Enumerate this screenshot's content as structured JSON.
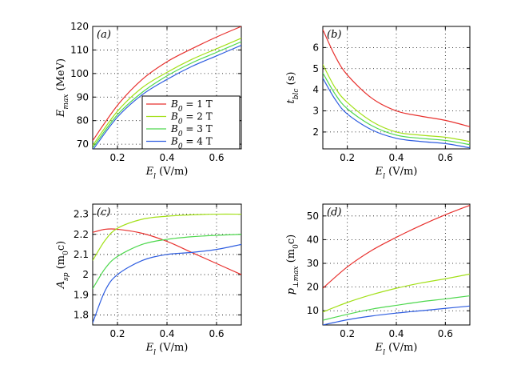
{
  "chart_data": [
    {
      "type": "line",
      "panel_label": "(a)",
      "x": [
        0.1,
        0.2,
        0.3,
        0.4,
        0.5,
        0.6,
        0.7
      ],
      "xlim": [
        0.1,
        0.7
      ],
      "ylim": [
        68,
        120
      ],
      "xticks": [
        0.2,
        0.4,
        0.6
      ],
      "yticks": [
        70,
        80,
        90,
        100,
        110,
        120
      ],
      "xticklabels": [
        "0.2",
        "0.4",
        "0.6"
      ],
      "yticklabels": [
        "70",
        "80",
        "90",
        "100",
        "110",
        "120"
      ],
      "xlabel": {
        "main": "E",
        "sub": "l",
        "units": " (V/m)"
      },
      "ylabel": {
        "main": "E",
        "sub": "max",
        "units": " (MeV)"
      },
      "grid": true,
      "legend": {
        "placement": "lower-right",
        "entries": [
          {
            "main": "B",
            "sub": "0",
            "rest": " = 1 T"
          },
          {
            "main": "B",
            "sub": "0",
            "rest": " = 2 T"
          },
          {
            "main": "B",
            "sub": "0",
            "rest": " = 3 T"
          },
          {
            "main": "B",
            "sub": "0",
            "rest": " = 4 T"
          }
        ]
      },
      "series": [
        {
          "color": "#e8312e",
          "values": [
            71.5,
            86.5,
            97.5,
            105.0,
            110.5,
            115.5,
            120.0
          ]
        },
        {
          "color": "#a3e019",
          "values": [
            69.5,
            84.0,
            94.0,
            100.5,
            106.0,
            110.5,
            115.0
          ]
        },
        {
          "color": "#4fd84f",
          "values": [
            68.5,
            82.5,
            92.0,
            99.0,
            104.5,
            109.0,
            113.5
          ]
        },
        {
          "color": "#2e5de0",
          "values": [
            67.5,
            81.5,
            91.0,
            97.5,
            103.0,
            107.5,
            112.0
          ]
        }
      ]
    },
    {
      "type": "line",
      "panel_label": "(b)",
      "x": [
        0.1,
        0.15,
        0.2,
        0.3,
        0.4,
        0.5,
        0.6,
        0.7
      ],
      "xlim": [
        0.1,
        0.7
      ],
      "ylim": [
        1.2,
        7
      ],
      "xticks": [
        0.2,
        0.4,
        0.6
      ],
      "yticks": [
        2,
        3,
        4,
        5,
        6
      ],
      "xticklabels": [
        "0.2",
        "0.4",
        "0.6"
      ],
      "yticklabels": [
        "2",
        "3",
        "4",
        "5",
        "6"
      ],
      "xlabel": {
        "main": "E",
        "sub": "l",
        "units": " (V/m)"
      },
      "ylabel": {
        "main": "t",
        "sub": "blc",
        "units": " (s)"
      },
      "grid": true,
      "series": [
        {
          "color": "#e8312e",
          "values": [
            6.85,
            5.6,
            4.7,
            3.6,
            3.0,
            2.75,
            2.55,
            2.25
          ]
        },
        {
          "color": "#a3e019",
          "values": [
            5.2,
            4.1,
            3.4,
            2.5,
            2.0,
            1.85,
            1.75,
            1.55
          ]
        },
        {
          "color": "#4fd84f",
          "values": [
            4.8,
            3.8,
            3.1,
            2.3,
            1.85,
            1.7,
            1.6,
            1.4
          ]
        },
        {
          "color": "#2e5de0",
          "values": [
            4.55,
            3.55,
            2.85,
            2.1,
            1.7,
            1.55,
            1.45,
            1.25
          ]
        }
      ]
    },
    {
      "type": "line",
      "panel_label": "(c)",
      "x": [
        0.1,
        0.15,
        0.2,
        0.3,
        0.4,
        0.5,
        0.6,
        0.7
      ],
      "xlim": [
        0.1,
        0.7
      ],
      "ylim": [
        1.75,
        2.35
      ],
      "xticks": [
        0.2,
        0.4,
        0.6
      ],
      "yticks": [
        1.8,
        1.9,
        2.0,
        2.1,
        2.2,
        2.3
      ],
      "xticklabels": [
        "0.2",
        "0.4",
        "0.6"
      ],
      "yticklabels": [
        "1.8",
        "1.9",
        "2",
        "2.1",
        "2.2",
        "2.3"
      ],
      "xlabel": {
        "main": "E",
        "sub": "l",
        "units": " (V/m)"
      },
      "ylabel": {
        "main": "A",
        "sub": "sp",
        "units": " (m",
        "units_sub": "0",
        "units_end": "c)"
      },
      "grid": true,
      "series": [
        {
          "color": "#e8312e",
          "values": [
            2.21,
            2.225,
            2.225,
            2.205,
            2.165,
            2.11,
            2.055,
            2.0
          ]
        },
        {
          "color": "#a3e019",
          "values": [
            2.07,
            2.17,
            2.23,
            2.275,
            2.29,
            2.297,
            2.3,
            2.3
          ]
        },
        {
          "color": "#4fd84f",
          "values": [
            1.93,
            2.03,
            2.09,
            2.15,
            2.175,
            2.188,
            2.195,
            2.2
          ]
        },
        {
          "color": "#2e5de0",
          "values": [
            1.76,
            1.92,
            2.0,
            2.07,
            2.1,
            2.11,
            2.125,
            2.15
          ]
        }
      ]
    },
    {
      "type": "line",
      "panel_label": "(d)",
      "x": [
        0.1,
        0.2,
        0.3,
        0.4,
        0.5,
        0.6,
        0.7
      ],
      "xlim": [
        0.1,
        0.7
      ],
      "ylim": [
        4,
        55
      ],
      "xticks": [
        0.2,
        0.4,
        0.6
      ],
      "yticks": [
        10,
        20,
        30,
        40,
        50
      ],
      "xticklabels": [
        "0.2",
        "0.4",
        "0.6"
      ],
      "yticklabels": [
        "10",
        "20",
        "30",
        "40",
        "50"
      ],
      "xlabel": {
        "main": "E",
        "sub": "l",
        "units": " (V/m)"
      },
      "ylabel": {
        "main": "p",
        "sub": "⊥max",
        "units": " (m",
        "units_sub": "0",
        "units_end": "c)"
      },
      "grid": true,
      "series": [
        {
          "color": "#e8312e",
          "values": [
            19.5,
            28.5,
            35.5,
            41.0,
            46.0,
            50.5,
            54.5
          ]
        },
        {
          "color": "#a3e019",
          "values": [
            9.5,
            13.5,
            16.8,
            19.5,
            21.7,
            23.5,
            25.5
          ]
        },
        {
          "color": "#4fd84f",
          "values": [
            6.0,
            8.5,
            10.7,
            12.3,
            13.8,
            15.0,
            16.3
          ]
        },
        {
          "color": "#2e5de0",
          "values": [
            4.0,
            6.2,
            7.8,
            9.0,
            10.0,
            11.0,
            12.0
          ]
        }
      ]
    }
  ]
}
